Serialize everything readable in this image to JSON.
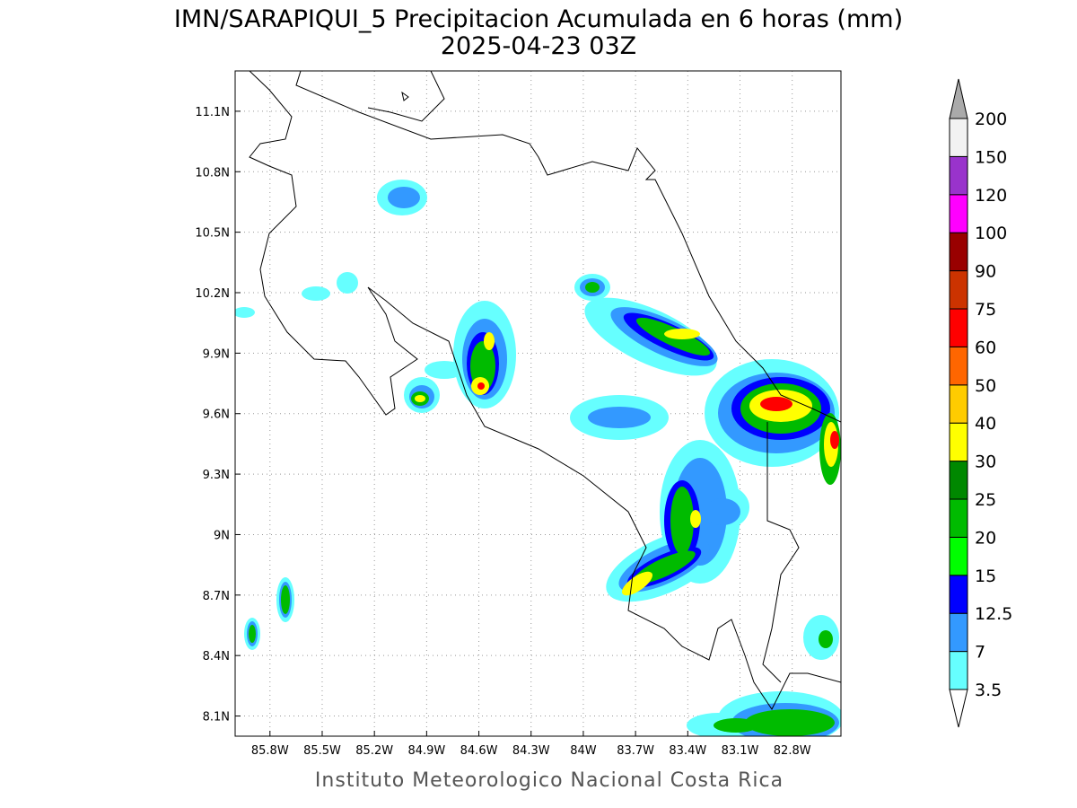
{
  "header": {
    "title": "IMN/SARAPIQUI_5 Precipitacion Acumulada en 6 horas (mm)",
    "subtitle": "2025-04-23 03Z"
  },
  "map": {
    "lon_range": [
      -86.0,
      -82.52
    ],
    "lat_range": [
      8.0,
      11.3
    ],
    "lon_ticks": [
      {
        "value": -85.8,
        "label": "85.8W"
      },
      {
        "value": -85.5,
        "label": "85.5W"
      },
      {
        "value": -85.2,
        "label": "85.2W"
      },
      {
        "value": -84.9,
        "label": "84.9W"
      },
      {
        "value": -84.6,
        "label": "84.6W"
      },
      {
        "value": -84.3,
        "label": "84.3W"
      },
      {
        "value": -84.0,
        "label": "84W"
      },
      {
        "value": -83.7,
        "label": "83.7W"
      },
      {
        "value": -83.4,
        "label": "83.4W"
      },
      {
        "value": -83.1,
        "label": "83.1W"
      },
      {
        "value": -82.8,
        "label": "82.8W"
      }
    ],
    "lat_ticks": [
      {
        "value": 11.1,
        "label": "11.1N"
      },
      {
        "value": 10.8,
        "label": "10.8N"
      },
      {
        "value": 10.5,
        "label": "10.5N"
      },
      {
        "value": 10.2,
        "label": "10.2N"
      },
      {
        "value": 9.9,
        "label": "9.9N"
      },
      {
        "value": 9.6,
        "label": "9.6N"
      },
      {
        "value": 9.3,
        "label": "9.3N"
      },
      {
        "value": 9.0,
        "label": "9N"
      },
      {
        "value": 8.7,
        "label": "8.7N"
      },
      {
        "value": 8.4,
        "label": "8.4N"
      },
      {
        "value": 8.1,
        "label": "8.1N"
      }
    ]
  },
  "colorbar": {
    "levels": [
      3.5,
      7,
      12.5,
      15,
      20,
      25,
      30,
      40,
      50,
      60,
      75,
      90,
      100,
      120,
      150,
      200
    ],
    "colors": [
      "#66ffff",
      "#3399ff",
      "#0000ff",
      "#00ff00",
      "#00bb00",
      "#008800",
      "#ffff00",
      "#ffcc00",
      "#ff6600",
      "#ff0000",
      "#cc3300",
      "#990000",
      "#ff00ff",
      "#9933cc",
      "#f2f2f2"
    ],
    "under_color": "#ffffff",
    "over_color": "#aaaaaa"
  },
  "footer": {
    "text": "Instituto Meteorologico Nacional Costa Rica"
  }
}
